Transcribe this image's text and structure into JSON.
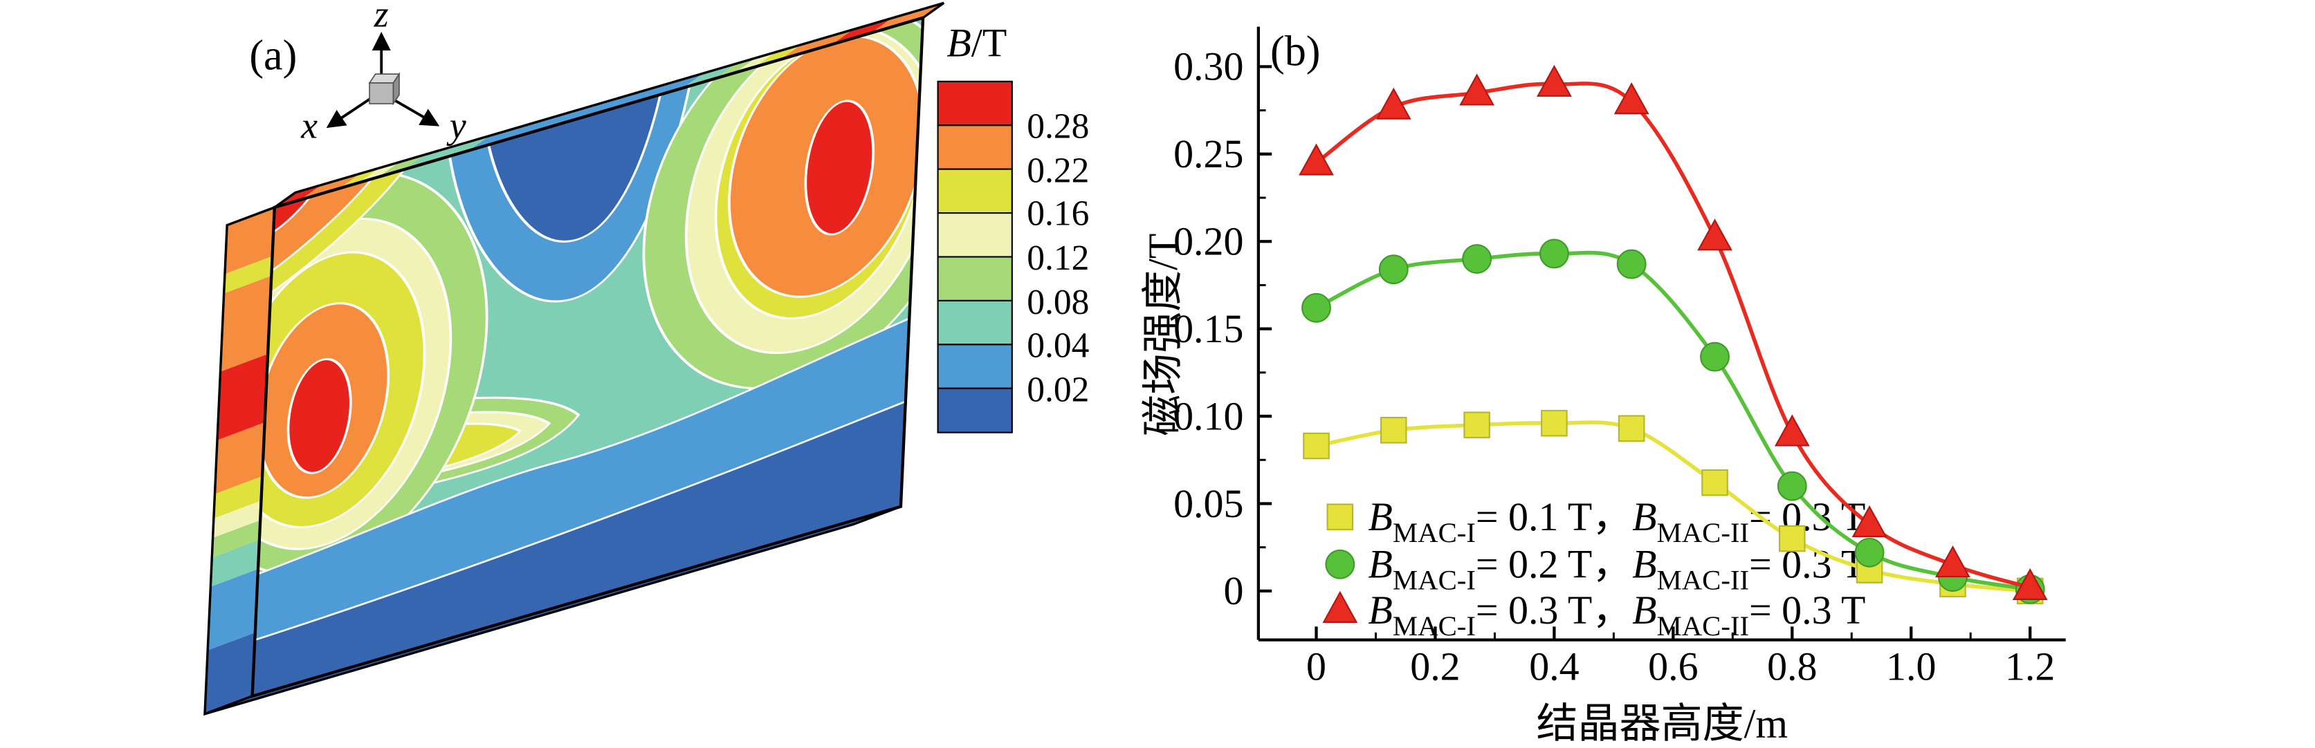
{
  "figure": {
    "panel_a": {
      "label": "(a)",
      "axes": {
        "x": "x",
        "y": "y",
        "z": "z"
      }
    },
    "panel_b": {
      "label": "(b)"
    }
  },
  "colorbar": {
    "title_italic": "B",
    "title_rest": "/T",
    "labels": [
      "0.28",
      "0.22",
      "0.16",
      "0.12",
      "0.08",
      "0.04",
      "0.02"
    ],
    "colors": [
      "#e8221c",
      "#f68c3e",
      "#dfe13c",
      "#f1f2b5",
      "#a6d977",
      "#7ecfb3",
      "#4f9bd5",
      "#3566af"
    ]
  },
  "chart_data": {
    "type": "line",
    "title": "",
    "xlabel": "结晶器高度/m",
    "ylabel": "磁场强度/T",
    "xlim": [
      -0.1,
      1.26
    ],
    "ylim": [
      -0.02,
      0.315
    ],
    "xticks": [
      0,
      0.2,
      0.4,
      0.6,
      0.8,
      1.0,
      1.2
    ],
    "xtick_labels": [
      "0",
      "0.2",
      "0.4",
      "0.6",
      "0.8",
      "1.0",
      "1.2"
    ],
    "yticks": [
      0,
      0.05,
      0.1,
      0.15,
      0.2,
      0.25,
      0.3
    ],
    "ytick_labels": [
      "0",
      "0.05",
      "0.10",
      "0.15",
      "0.20",
      "0.25",
      "0.30"
    ],
    "grid": false,
    "legend_position": "lower-left",
    "x": [
      0,
      0.13,
      0.27,
      0.4,
      0.53,
      0.67,
      0.8,
      0.93,
      1.07,
      1.2
    ],
    "series": [
      {
        "name": "B_MAC-I = 0.1 T, B_MAC-II = 0.3 T",
        "marker": "square",
        "color": "#e4e23b",
        "edge": "#b9b723",
        "values": [
          0.083,
          0.092,
          0.095,
          0.096,
          0.093,
          0.062,
          0.03,
          0.012,
          0.004,
          0.0
        ],
        "label_segments": [
          {
            "t": "B",
            "s": "i"
          },
          {
            "t": "MAC-I",
            "s": "sub"
          },
          {
            "t": "= 0.1 T，",
            "s": "n"
          },
          {
            "t": "B",
            "s": "i"
          },
          {
            "t": "MAC-II",
            "s": "sub"
          },
          {
            "t": "= 0.3 T",
            "s": "n"
          }
        ]
      },
      {
        "name": "B_MAC-I = 0.2 T, B_MAC-II = 0.3 T",
        "marker": "circle",
        "color": "#57c13a",
        "edge": "#3f9c28",
        "values": [
          0.162,
          0.184,
          0.19,
          0.193,
          0.187,
          0.134,
          0.06,
          0.022,
          0.008,
          0.001
        ],
        "label_segments": [
          {
            "t": "B",
            "s": "i"
          },
          {
            "t": "MAC-I",
            "s": "sub"
          },
          {
            "t": "= 0.2 T，",
            "s": "n"
          },
          {
            "t": "B",
            "s": "i"
          },
          {
            "t": "MAC-II",
            "s": "sub"
          },
          {
            "t": "= 0.3 T",
            "s": "n"
          }
        ]
      },
      {
        "name": "B_MAC-I = 0.3 T, B_MAC-II = 0.3 T",
        "marker": "triangle",
        "color": "#e82a20",
        "edge": "#b31712",
        "values": [
          0.245,
          0.277,
          0.285,
          0.29,
          0.28,
          0.202,
          0.09,
          0.038,
          0.015,
          0.002
        ],
        "label_segments": [
          {
            "t": "B",
            "s": "i"
          },
          {
            "t": "MAC-I",
            "s": "sub"
          },
          {
            "t": "= 0.3 T，",
            "s": "n"
          },
          {
            "t": "B",
            "s": "i"
          },
          {
            "t": "MAC-II",
            "s": "sub"
          },
          {
            "t": "= 0.3 T",
            "s": "n"
          }
        ]
      }
    ]
  }
}
